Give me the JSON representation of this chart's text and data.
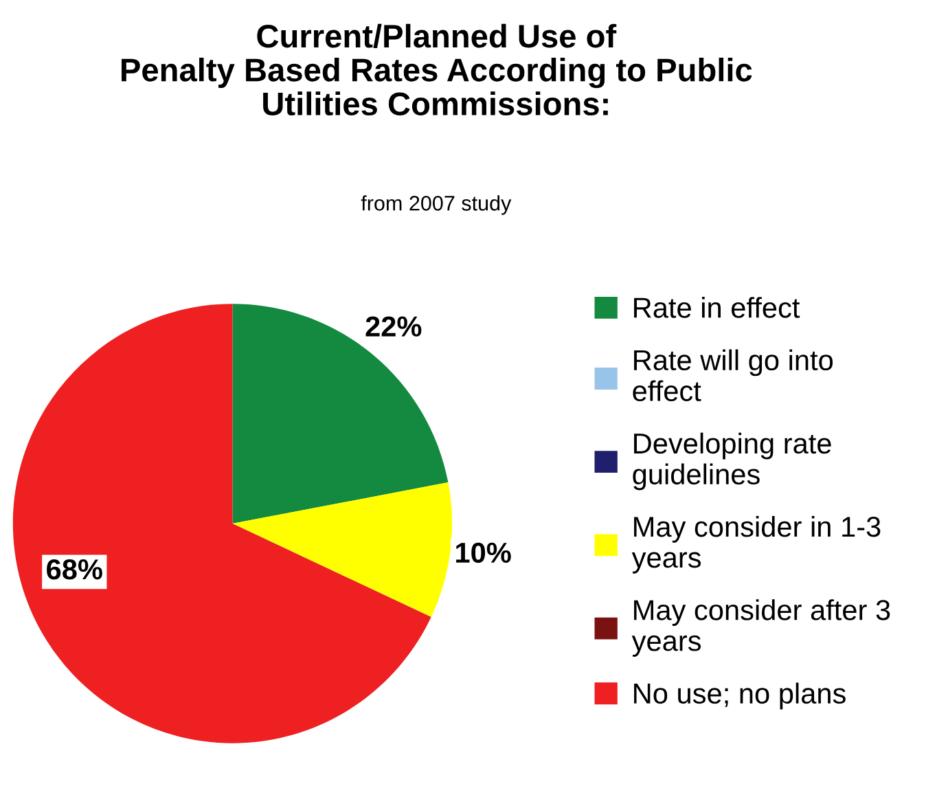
{
  "chart_data": {
    "type": "pie",
    "title": "Current/Planned Use of\nPenalty Based Rates According to Public\nUtilities Commissions:",
    "subtitle": "from 2007 study",
    "categories": [
      "Rate in effect",
      "Rate will go into effect",
      "Developing rate guidelines",
      "May consider in 1-3 years",
      "May consider after 3 years",
      "No use; no plans"
    ],
    "values": [
      22,
      0,
      0,
      10,
      0,
      68
    ],
    "colors": [
      "#138a40",
      "#99c4ea",
      "#1f1f6e",
      "#ffff00",
      "#7b1212",
      "#ee2022"
    ],
    "value_labels": [
      "22%",
      null,
      null,
      "10%",
      null,
      "68%"
    ],
    "legend": "right"
  }
}
